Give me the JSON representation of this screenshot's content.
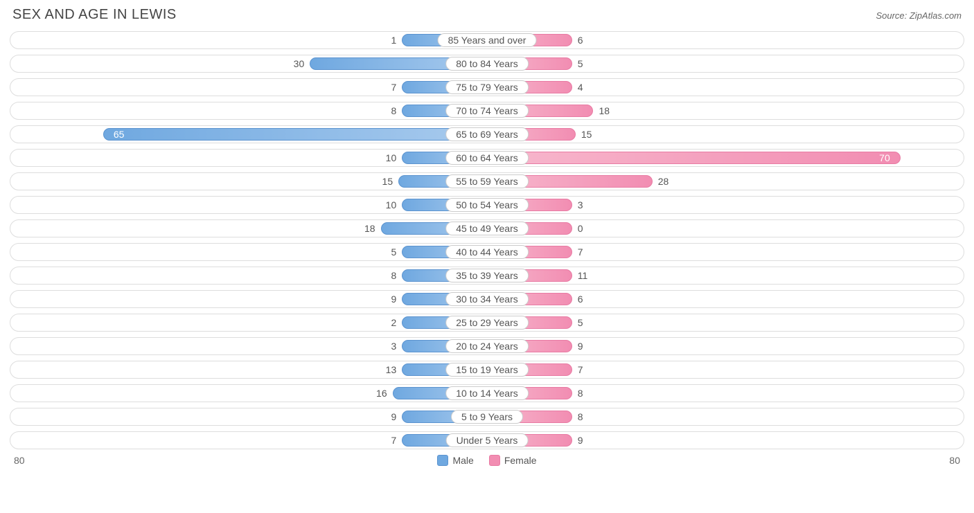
{
  "title": "SEX AND AGE IN LEWIS",
  "source": "Source: ZipAtlas.com",
  "type": "population-pyramid",
  "axis_max": 80,
  "axis_label_left": "80",
  "axis_label_right": "80",
  "legend": {
    "male": "Male",
    "female": "Female"
  },
  "colors": {
    "male_fill_start": "#a9cbee",
    "male_fill_end": "#6fa8e0",
    "male_border": "#5b93cf",
    "female_fill_start": "#f7b8cd",
    "female_fill_end": "#f28db2",
    "female_border": "#e87aa3",
    "row_border": "#dddddd",
    "text": "#555555",
    "background": "#ffffff"
  },
  "inside_threshold": 60,
  "rows": [
    {
      "label": "85 Years and over",
      "male": 1,
      "female": 6
    },
    {
      "label": "80 to 84 Years",
      "male": 30,
      "female": 5
    },
    {
      "label": "75 to 79 Years",
      "male": 7,
      "female": 4
    },
    {
      "label": "70 to 74 Years",
      "male": 8,
      "female": 18
    },
    {
      "label": "65 to 69 Years",
      "male": 65,
      "female": 15
    },
    {
      "label": "60 to 64 Years",
      "male": 10,
      "female": 70
    },
    {
      "label": "55 to 59 Years",
      "male": 15,
      "female": 28
    },
    {
      "label": "50 to 54 Years",
      "male": 10,
      "female": 3
    },
    {
      "label": "45 to 49 Years",
      "male": 18,
      "female": 0
    },
    {
      "label": "40 to 44 Years",
      "male": 5,
      "female": 7
    },
    {
      "label": "35 to 39 Years",
      "male": 8,
      "female": 11
    },
    {
      "label": "30 to 34 Years",
      "male": 9,
      "female": 6
    },
    {
      "label": "25 to 29 Years",
      "male": 2,
      "female": 5
    },
    {
      "label": "20 to 24 Years",
      "male": 3,
      "female": 9
    },
    {
      "label": "15 to 19 Years",
      "male": 13,
      "female": 7
    },
    {
      "label": "10 to 14 Years",
      "male": 16,
      "female": 8
    },
    {
      "label": "5 to 9 Years",
      "male": 9,
      "female": 8
    },
    {
      "label": "Under 5 Years",
      "male": 7,
      "female": 9
    }
  ]
}
